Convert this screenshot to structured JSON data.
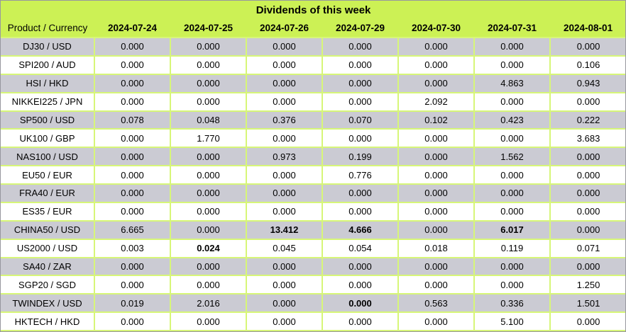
{
  "title": "Dividends of this week",
  "columns": [
    "Product / Currency",
    "2024-07-24",
    "2024-07-25",
    "2024-07-26",
    "2024-07-29",
    "2024-07-30",
    "2024-07-31",
    "2024-08-01"
  ],
  "rows": [
    {
      "product": "DJ30 / USD",
      "values": [
        "0.000",
        "0.000",
        "0.000",
        "0.000",
        "0.000",
        "0.000",
        "0.000"
      ],
      "bold": []
    },
    {
      "product": "SPI200 / AUD",
      "values": [
        "0.000",
        "0.000",
        "0.000",
        "0.000",
        "0.000",
        "0.000",
        "0.106"
      ],
      "bold": []
    },
    {
      "product": "HSI / HKD",
      "values": [
        "0.000",
        "0.000",
        "0.000",
        "0.000",
        "0.000",
        "4.863",
        "0.943"
      ],
      "bold": []
    },
    {
      "product": "NIKKEI225 / JPN",
      "values": [
        "0.000",
        "0.000",
        "0.000",
        "0.000",
        "2.092",
        "0.000",
        "0.000"
      ],
      "bold": []
    },
    {
      "product": "SP500 / USD",
      "values": [
        "0.078",
        "0.048",
        "0.376",
        "0.070",
        "0.102",
        "0.423",
        "0.222"
      ],
      "bold": []
    },
    {
      "product": "UK100 / GBP",
      "values": [
        "0.000",
        "1.770",
        "0.000",
        "0.000",
        "0.000",
        "0.000",
        "3.683"
      ],
      "bold": []
    },
    {
      "product": "NAS100 / USD",
      "values": [
        "0.000",
        "0.000",
        "0.973",
        "0.199",
        "0.000",
        "1.562",
        "0.000"
      ],
      "bold": []
    },
    {
      "product": "EU50 / EUR",
      "values": [
        "0.000",
        "0.000",
        "0.000",
        "0.776",
        "0.000",
        "0.000",
        "0.000"
      ],
      "bold": []
    },
    {
      "product": "FRA40 / EUR",
      "values": [
        "0.000",
        "0.000",
        "0.000",
        "0.000",
        "0.000",
        "0.000",
        "0.000"
      ],
      "bold": []
    },
    {
      "product": "ES35 / EUR",
      "values": [
        "0.000",
        "0.000",
        "0.000",
        "0.000",
        "0.000",
        "0.000",
        "0.000"
      ],
      "bold": []
    },
    {
      "product": "CHINA50 / USD",
      "values": [
        "6.665",
        "0.000",
        "13.412",
        "4.666",
        "0.000",
        "6.017",
        "0.000"
      ],
      "bold": [
        2,
        3,
        5
      ]
    },
    {
      "product": "US2000 / USD",
      "values": [
        "0.003",
        "0.024",
        "0.045",
        "0.054",
        "0.018",
        "0.119",
        "0.071"
      ],
      "bold": [
        1
      ]
    },
    {
      "product": "SA40 / ZAR",
      "values": [
        "0.000",
        "0.000",
        "0.000",
        "0.000",
        "0.000",
        "0.000",
        "0.000"
      ],
      "bold": []
    },
    {
      "product": "SGP20 / SGD",
      "values": [
        "0.000",
        "0.000",
        "0.000",
        "0.000",
        "0.000",
        "0.000",
        "1.250"
      ],
      "bold": []
    },
    {
      "product": "TWINDEX / USD",
      "values": [
        "0.019",
        "2.016",
        "0.000",
        "0.000",
        "0.563",
        "0.336",
        "1.501"
      ],
      "bold": [
        3
      ]
    },
    {
      "product": "HKTECH / HKD",
      "values": [
        "0.000",
        "0.000",
        "0.000",
        "0.000",
        "0.000",
        "5.100",
        "0.000"
      ],
      "bold": []
    }
  ],
  "colors": {
    "header_green": "#ccf155",
    "grid_green": "#d7f678",
    "gray_row": "#cbcbd3",
    "white_row": "#ffffff",
    "outer_border": "#97979f",
    "text": "#000000"
  }
}
